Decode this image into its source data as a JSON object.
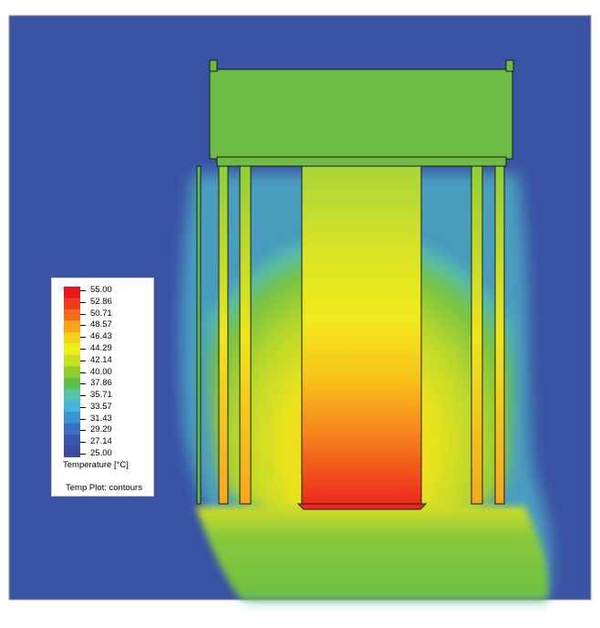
{
  "legend": {
    "title": "Temperature [°C]",
    "subtitle": "Temp Plot: contours",
    "ticks": [
      "55.00",
      "52.86",
      "50.71",
      "48.57",
      "46.43",
      "44.29",
      "42.14",
      "40.00",
      "37.86",
      "35.71",
      "33.57",
      "31.43",
      "29.29",
      "27.14",
      "25.00"
    ],
    "colors": [
      "#e8161b",
      "#f03a1d",
      "#f56b1e",
      "#f9a21c",
      "#f7cf18",
      "#eef01a",
      "#c9e020",
      "#8fcf2e",
      "#5fbd4b",
      "#54c4a4",
      "#45b6d9",
      "#3a93d6",
      "#3a6fc4",
      "#3a55ad",
      "#3a4a9e"
    ]
  },
  "colors": {
    "background": "#3a53a4",
    "solid_green": "#6dbd45",
    "outline": "#1a1a1a"
  }
}
